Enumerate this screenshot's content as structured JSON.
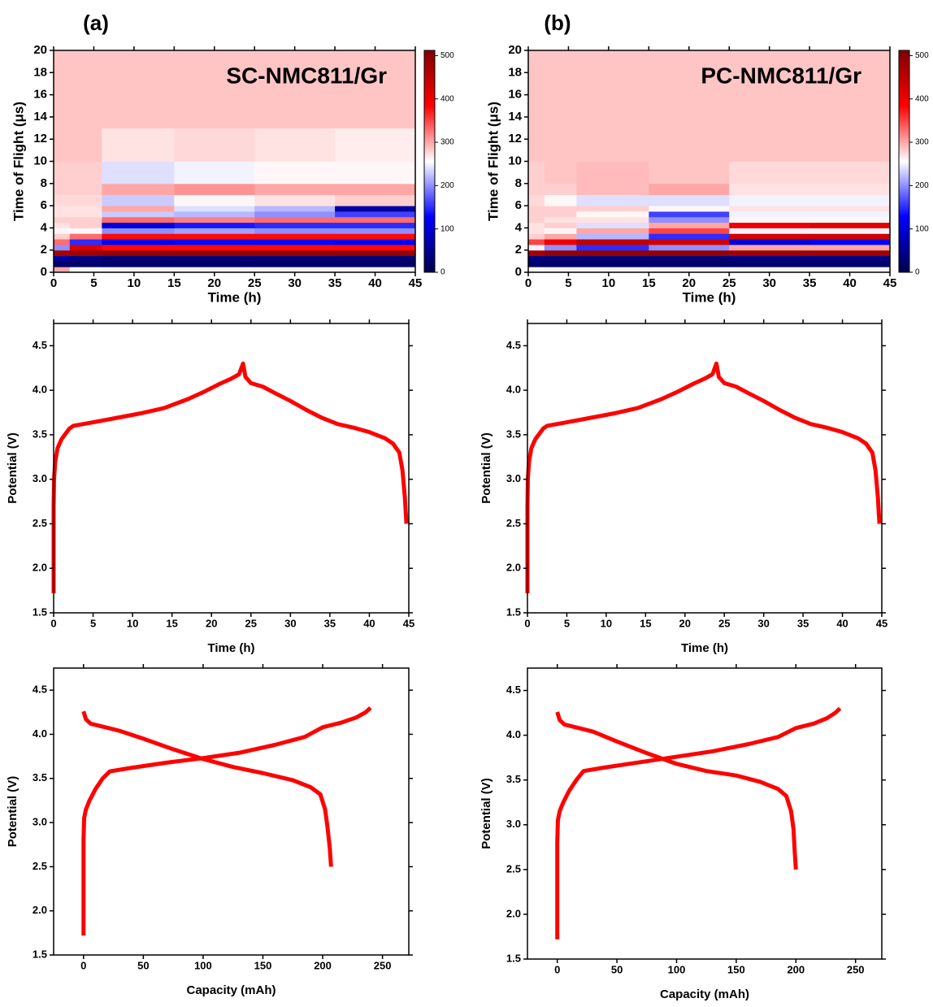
{
  "panel_labels": [
    "(a)",
    "(b)"
  ],
  "chart_data": [
    {
      "type": "heatmap",
      "title": "SC-NMC811/Gr",
      "x_label": "Time (h)",
      "y_label": "Time of Flight (μs)",
      "xlim": [
        0,
        45
      ],
      "ylim": [
        0,
        20
      ],
      "xticks": [
        0,
        5,
        10,
        15,
        20,
        25,
        30,
        35,
        40,
        45
      ],
      "yticks": [
        0,
        2,
        4,
        6,
        8,
        10,
        12,
        14,
        16,
        18,
        20
      ],
      "xbins": [
        0,
        2,
        6,
        15,
        25,
        35,
        45
      ],
      "ybins": [
        0,
        0.5,
        1,
        1.5,
        2,
        2.5,
        3,
        3.5,
        4,
        4.5,
        5,
        5.5,
        6,
        7,
        8,
        10,
        13,
        20
      ],
      "z": [
        [
          300,
          260,
          250,
          250,
          250,
          250
        ],
        [
          20,
          20,
          20,
          20,
          20,
          20
        ],
        [
          60,
          40,
          30,
          30,
          30,
          30
        ],
        [
          470,
          480,
          490,
          490,
          490,
          490
        ],
        [
          200,
          420,
          380,
          380,
          380,
          380
        ],
        [
          330,
          150,
          120,
          130,
          130,
          120
        ],
        [
          280,
          330,
          380,
          380,
          380,
          380
        ],
        [
          260,
          260,
          200,
          210,
          200,
          200
        ],
        [
          270,
          280,
          100,
          140,
          150,
          150
        ],
        [
          280,
          280,
          330,
          320,
          330,
          330
        ],
        [
          270,
          270,
          230,
          220,
          200,
          160
        ],
        [
          270,
          270,
          300,
          240,
          220,
          60
        ],
        [
          275,
          275,
          230,
          260,
          270,
          280
        ],
        [
          280,
          280,
          300,
          310,
          300,
          300
        ],
        [
          280,
          280,
          240,
          250,
          260,
          260
        ],
        [
          285,
          285,
          270,
          275,
          270,
          265
        ],
        [
          285,
          285,
          285,
          285,
          285,
          285
        ]
      ],
      "colormap": [
        "#00004c",
        "#0000ff",
        "#ffffff",
        "#ff0000",
        "#800000"
      ],
      "clim": [
        0,
        512
      ],
      "cticks": [
        0,
        100,
        200,
        300,
        400,
        500
      ]
    },
    {
      "type": "heatmap",
      "title": "PC-NMC811/Gr",
      "x_label": "Time (h)",
      "y_label": "Time of Flight (μs)",
      "xlim": [
        0,
        45
      ],
      "ylim": [
        0,
        20
      ],
      "xticks": [
        0,
        5,
        10,
        15,
        20,
        25,
        30,
        35,
        40,
        45
      ],
      "yticks": [
        0,
        2,
        4,
        6,
        8,
        10,
        12,
        14,
        16,
        18,
        20
      ],
      "xbins": [
        0,
        2,
        6,
        15,
        25,
        35,
        45
      ],
      "ybins": [
        0,
        0.5,
        1,
        1.5,
        2,
        2.5,
        3,
        3.5,
        4,
        4.5,
        5,
        5.5,
        6,
        7,
        8,
        10,
        13,
        20
      ],
      "z": [
        [
          260,
          250,
          250,
          250,
          250,
          250
        ],
        [
          20,
          20,
          20,
          20,
          20,
          20
        ],
        [
          40,
          30,
          30,
          30,
          40,
          40
        ],
        [
          470,
          490,
          490,
          490,
          480,
          480
        ],
        [
          250,
          200,
          150,
          200,
          300,
          300
        ],
        [
          350,
          400,
          450,
          430,
          100,
          120
        ],
        [
          280,
          300,
          220,
          150,
          430,
          430
        ],
        [
          270,
          260,
          300,
          350,
          250,
          250
        ],
        [
          270,
          280,
          240,
          300,
          400,
          410
        ],
        [
          280,
          270,
          270,
          200,
          260,
          260
        ],
        [
          280,
          280,
          260,
          160,
          250,
          250
        ],
        [
          280,
          280,
          280,
          260,
          270,
          270
        ],
        [
          275,
          260,
          240,
          240,
          250,
          250
        ],
        [
          280,
          280,
          290,
          300,
          270,
          270
        ],
        [
          280,
          285,
          290,
          285,
          275,
          275
        ],
        [
          285,
          285,
          285,
          285,
          285,
          285
        ],
        [
          285,
          285,
          285,
          285,
          285,
          285
        ]
      ],
      "colormap": [
        "#00004c",
        "#0000ff",
        "#ffffff",
        "#ff0000",
        "#800000"
      ],
      "clim": [
        0,
        512
      ],
      "cticks": [
        0,
        100,
        200,
        300,
        400,
        500
      ]
    },
    {
      "type": "line",
      "x_label": "Time (h)",
      "y_label": "Potential (V)",
      "xlim": [
        0,
        45
      ],
      "ylim": [
        1.5,
        4.75
      ],
      "xticks": [
        0,
        5,
        10,
        15,
        20,
        25,
        30,
        35,
        40,
        45
      ],
      "yticks": [
        1.5,
        {
          "value": 2,
          "label": "2.0"
        },
        2.5,
        {
          "value": 3,
          "label": "3.0"
        },
        3.5,
        {
          "value": 4,
          "label": "4.0"
        },
        4.5
      ],
      "series": [
        {
          "color": "#ff0000",
          "x": [
            0,
            0,
            0,
            0,
            0,
            0.05,
            0.2,
            0.5,
            1,
            2,
            2.5,
            5,
            8,
            11,
            14,
            17,
            19,
            21,
            22.5,
            23.5,
            24,
            24.3,
            25,
            26.5,
            28,
            30,
            32,
            34,
            36,
            38,
            40,
            42,
            43,
            43.8,
            44.2,
            44.5,
            44.7
          ],
          "values": [
            1.72,
            2.0,
            2.2,
            2.4,
            2.7,
            3.0,
            3.2,
            3.35,
            3.45,
            3.57,
            3.6,
            3.64,
            3.69,
            3.74,
            3.8,
            3.9,
            3.98,
            4.07,
            4.13,
            4.18,
            4.3,
            4.15,
            4.08,
            4.04,
            3.97,
            3.88,
            3.78,
            3.69,
            3.62,
            3.58,
            3.53,
            3.46,
            3.4,
            3.3,
            3.1,
            2.8,
            2.5
          ]
        }
      ]
    },
    {
      "type": "line",
      "x_label": "Time (h)",
      "y_label": "Potential (V)",
      "xlim": [
        0,
        45
      ],
      "ylim": [
        1.5,
        4.75
      ],
      "xticks": [
        0,
        5,
        10,
        15,
        20,
        25,
        30,
        35,
        40,
        45
      ],
      "yticks": [
        1.5,
        {
          "value": 2,
          "label": "2.0"
        },
        2.5,
        {
          "value": 3,
          "label": "3.0"
        },
        3.5,
        {
          "value": 4,
          "label": "4.0"
        },
        4.5
      ],
      "series": [
        {
          "color": "#ff0000",
          "x": [
            0,
            0,
            0,
            0,
            0,
            0.05,
            0.2,
            0.5,
            1,
            2,
            2.5,
            5,
            8,
            11,
            14,
            17,
            19,
            21,
            22.5,
            23.5,
            24,
            24.3,
            25,
            26.5,
            28,
            30,
            32,
            34,
            36,
            38,
            40,
            42,
            43,
            43.8,
            44.2,
            44.5,
            44.7
          ],
          "values": [
            1.72,
            2.0,
            2.2,
            2.4,
            2.7,
            3.0,
            3.2,
            3.35,
            3.45,
            3.57,
            3.6,
            3.64,
            3.69,
            3.74,
            3.8,
            3.9,
            3.98,
            4.07,
            4.13,
            4.18,
            4.3,
            4.15,
            4.08,
            4.04,
            3.97,
            3.88,
            3.78,
            3.69,
            3.62,
            3.58,
            3.53,
            3.46,
            3.4,
            3.3,
            3.1,
            2.8,
            2.5
          ]
        }
      ]
    },
    {
      "type": "line",
      "x_label": "Capacity (mAh)",
      "y_label": "Potential (V)",
      "xlim": [
        -25,
        272
      ],
      "ylim": [
        1.5,
        4.75
      ],
      "xticks": [
        0,
        50,
        100,
        150,
        200,
        250
      ],
      "yticks": [
        1.5,
        {
          "value": 2,
          "label": "2.0"
        },
        2.5,
        {
          "value": 3,
          "label": "3.0"
        },
        3.5,
        {
          "value": 4,
          "label": "4.0"
        },
        4.5
      ],
      "series": [
        {
          "color": "#ff0000",
          "x": [
            0,
            0,
            0,
            0,
            0,
            0,
            0.5,
            2,
            5,
            10,
            16,
            22,
            40,
            70,
            100,
            130,
            160,
            185,
            200,
            215,
            228,
            236,
            240
          ],
          "values": [
            1.72,
            2.02,
            2.22,
            2.4,
            2.55,
            2.8,
            3.05,
            3.15,
            3.25,
            3.38,
            3.5,
            3.58,
            3.62,
            3.68,
            3.73,
            3.79,
            3.88,
            3.97,
            4.08,
            4.13,
            4.19,
            4.25,
            4.3
          ]
        },
        {
          "color": "#ff0000",
          "x": [
            0,
            2,
            6,
            15,
            30,
            50,
            75,
            100,
            125,
            150,
            175,
            190,
            198,
            202,
            204,
            206,
            207
          ],
          "values": [
            4.26,
            4.17,
            4.12,
            4.09,
            4.04,
            3.95,
            3.83,
            3.72,
            3.63,
            3.56,
            3.48,
            3.4,
            3.32,
            3.15,
            2.95,
            2.7,
            2.5
          ]
        }
      ]
    },
    {
      "type": "line",
      "x_label": "Capacity (mAh)",
      "y_label": "Potential (V)",
      "xlim": [
        -25,
        272
      ],
      "ylim": [
        1.5,
        4.75
      ],
      "xticks": [
        0,
        50,
        100,
        150,
        200,
        250
      ],
      "yticks": [
        1.5,
        {
          "value": 2,
          "label": "2.0"
        },
        2.5,
        {
          "value": 3,
          "label": "3.0"
        },
        3.5,
        {
          "value": 4,
          "label": "4.0"
        },
        4.5
      ],
      "series": [
        {
          "color": "#ff0000",
          "x": [
            0,
            0,
            0,
            0,
            0,
            0,
            0.5,
            2,
            5,
            10,
            16,
            22,
            40,
            70,
            100,
            130,
            160,
            185,
            200,
            215,
            226,
            233,
            237
          ],
          "values": [
            1.72,
            2.05,
            2.25,
            2.45,
            2.6,
            2.8,
            3.05,
            3.15,
            3.25,
            3.38,
            3.5,
            3.6,
            3.64,
            3.7,
            3.76,
            3.82,
            3.9,
            3.98,
            4.08,
            4.13,
            4.19,
            4.25,
            4.3
          ]
        },
        {
          "color": "#ff0000",
          "x": [
            0,
            2,
            6,
            15,
            30,
            50,
            75,
            100,
            125,
            150,
            170,
            185,
            192,
            196,
            198,
            199,
            200
          ],
          "values": [
            4.26,
            4.17,
            4.12,
            4.09,
            4.04,
            3.93,
            3.8,
            3.68,
            3.6,
            3.55,
            3.48,
            3.4,
            3.32,
            3.15,
            2.95,
            2.7,
            2.5
          ]
        }
      ]
    }
  ]
}
